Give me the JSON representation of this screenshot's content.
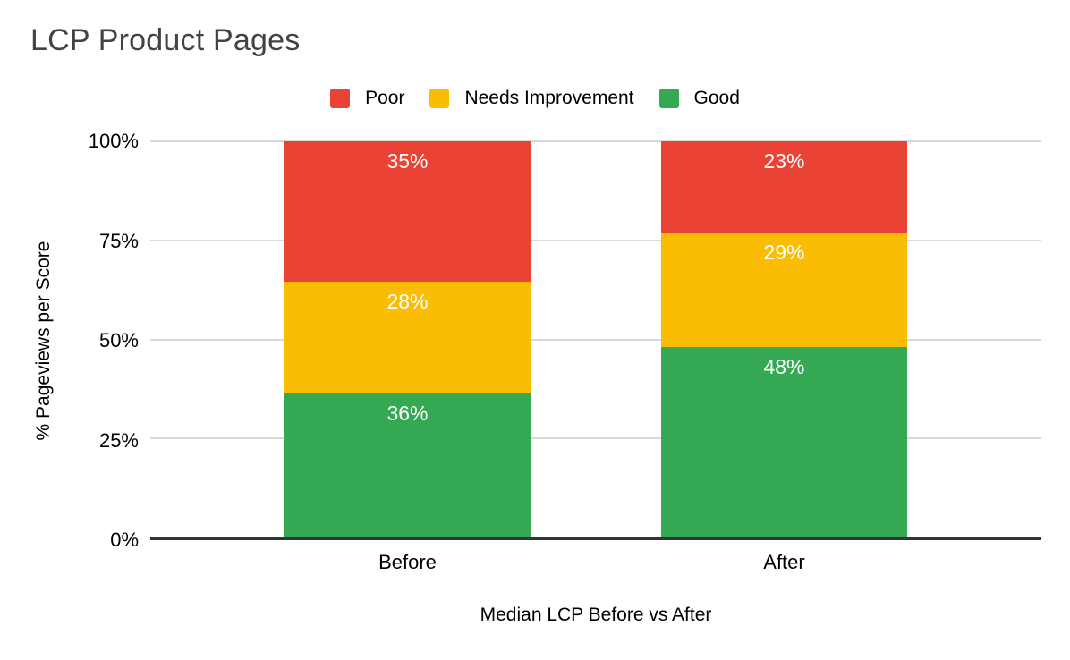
{
  "chart_data": {
    "type": "bar",
    "stacked": true,
    "title": "LCP Product Pages",
    "xlabel": "Median LCP Before vs After",
    "ylabel": "% Pageviews per Score",
    "categories": [
      "Before",
      "After"
    ],
    "series": [
      {
        "name": "Poor",
        "color": "#EA4335",
        "values": [
          35,
          23
        ]
      },
      {
        "name": "Needs Improvement",
        "color": "#FBBC04",
        "values": [
          28,
          29
        ]
      },
      {
        "name": "Good",
        "color": "#34A853",
        "values": [
          36,
          48
        ]
      }
    ],
    "value_suffix": "%",
    "yticks": [
      "100%",
      "75%",
      "50%",
      "25%",
      "0%"
    ],
    "ylim": [
      0,
      100
    ],
    "grid": true,
    "legend_position": "top",
    "colors": {
      "segment_label": "#ffffff",
      "gridline": "#d9d9d9",
      "axis_line": "#333333",
      "title": "#434343",
      "text": "#000000",
      "background": "#ffffff"
    }
  }
}
